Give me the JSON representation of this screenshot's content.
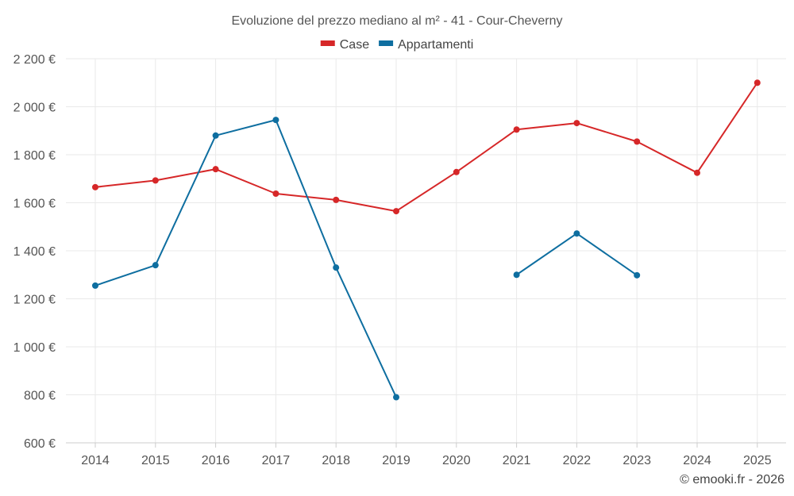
{
  "chart_data": {
    "type": "line",
    "title": "Evoluzione del prezzo mediano al m² - 41 - Cour-Cheverny",
    "xlabel": "",
    "ylabel": "",
    "categories": [
      "2014",
      "2015",
      "2016",
      "2017",
      "2018",
      "2019",
      "2020",
      "2021",
      "2022",
      "2023",
      "2024",
      "2025"
    ],
    "ylim": [
      600,
      2200
    ],
    "yticks": [
      600,
      800,
      1000,
      1200,
      1400,
      1600,
      1800,
      2000,
      2200
    ],
    "ytick_labels": [
      "600 €",
      "800 €",
      "1 000 €",
      "1 200 €",
      "1 400 €",
      "1 600 €",
      "1 800 €",
      "2 000 €",
      "2 200 €"
    ],
    "grid": true,
    "legend_position": "top-center",
    "series": [
      {
        "name": "Case",
        "color": "#d62728",
        "values": [
          1665,
          1693,
          1740,
          1638,
          1612,
          1565,
          1728,
          1905,
          1932,
          1855,
          1725,
          2100
        ]
      },
      {
        "name": "Appartamenti",
        "color": "#0e6ea0",
        "values": [
          1255,
          1340,
          1880,
          1945,
          1330,
          790,
          null,
          1300,
          1472,
          1298,
          null,
          null
        ]
      }
    ]
  },
  "credit": "© emooki.fr - 2026"
}
